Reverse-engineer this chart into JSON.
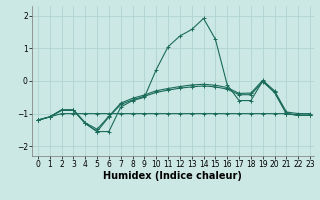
{
  "xlabel": "Humidex (Indice chaleur)",
  "ylabel": "",
  "xlim": [
    -0.5,
    23.3
  ],
  "ylim": [
    -2.3,
    2.3
  ],
  "bg_color": "#cce8e4",
  "grid_color": "#b0d4d0",
  "line_color": "#1a6b5a",
  "line1_x": [
    0,
    1,
    2,
    3,
    4,
    5,
    6,
    7,
    8,
    9,
    10,
    11,
    12,
    13,
    14,
    15,
    16,
    17,
    18,
    19,
    20,
    21,
    22,
    23
  ],
  "line1_y": [
    -1.2,
    -1.1,
    -0.9,
    -0.9,
    -1.3,
    -1.55,
    -1.55,
    -0.8,
    -0.6,
    -0.5,
    0.35,
    1.05,
    1.38,
    1.58,
    1.92,
    1.28,
    -0.12,
    -0.6,
    -0.6,
    0.0,
    -0.35,
    -1.0,
    -1.05,
    -1.05
  ],
  "line2_x": [
    0,
    1,
    2,
    3,
    4,
    5,
    6,
    7,
    8,
    9,
    10,
    11,
    12,
    13,
    14,
    15,
    16,
    17,
    18,
    19,
    20,
    21,
    22,
    23
  ],
  "line2_y": [
    -1.2,
    -1.1,
    -0.9,
    -0.9,
    -1.3,
    -1.55,
    -1.1,
    -0.72,
    -0.58,
    -0.47,
    -0.35,
    -0.28,
    -0.22,
    -0.18,
    -0.15,
    -0.18,
    -0.25,
    -0.42,
    -0.42,
    -0.02,
    -0.35,
    -1.0,
    -1.05,
    -1.05
  ],
  "line3_x": [
    0,
    1,
    2,
    3,
    4,
    5,
    6,
    7,
    8,
    9,
    10,
    11,
    12,
    13,
    14,
    15,
    16,
    17,
    18,
    19,
    20,
    21,
    22,
    23
  ],
  "line3_y": [
    -1.2,
    -1.1,
    -0.88,
    -0.88,
    -1.28,
    -1.48,
    -1.08,
    -0.68,
    -0.53,
    -0.43,
    -0.3,
    -0.23,
    -0.17,
    -0.12,
    -0.1,
    -0.13,
    -0.2,
    -0.38,
    -0.37,
    0.02,
    -0.3,
    -0.95,
    -1.0,
    -1.0
  ],
  "line4_x": [
    0,
    1,
    2,
    3,
    4,
    5,
    6,
    7,
    8,
    9,
    10,
    11,
    12,
    13,
    14,
    15,
    16,
    17,
    18,
    19,
    20,
    21,
    22,
    23
  ],
  "line4_y": [
    -1.2,
    -1.1,
    -1.0,
    -1.0,
    -1.0,
    -1.0,
    -1.0,
    -1.0,
    -1.0,
    -1.0,
    -1.0,
    -1.0,
    -1.0,
    -1.0,
    -1.0,
    -1.0,
    -1.0,
    -1.0,
    -1.0,
    -1.0,
    -1.0,
    -1.0,
    -1.05,
    -1.05
  ],
  "xticks": [
    0,
    1,
    2,
    3,
    4,
    5,
    6,
    7,
    8,
    9,
    10,
    11,
    12,
    13,
    14,
    15,
    16,
    17,
    18,
    19,
    20,
    21,
    22,
    23
  ],
  "yticks": [
    -2,
    -1,
    0,
    1,
    2
  ],
  "tick_fontsize": 5.5,
  "label_fontsize": 7.0
}
